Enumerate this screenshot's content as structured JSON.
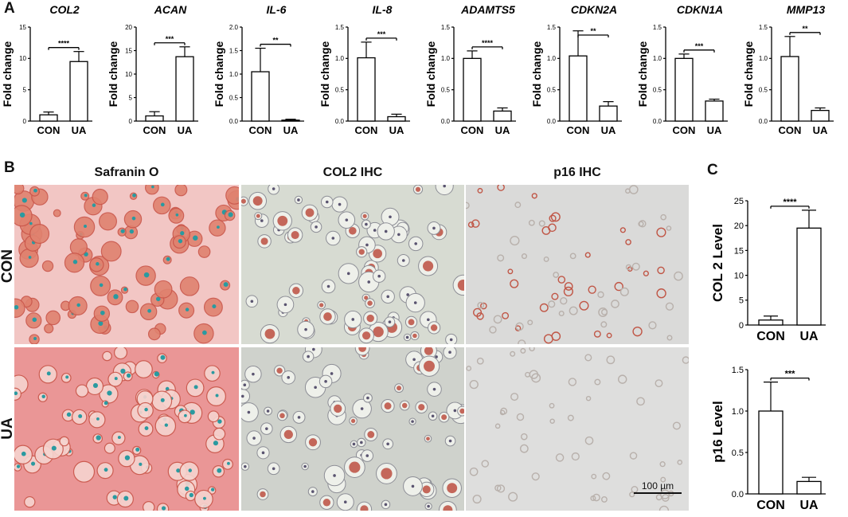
{
  "panels": {
    "a": "A",
    "b": "B",
    "c": "C"
  },
  "panel_b": {
    "columns": [
      "Safranin O",
      "COL2 IHC",
      "p16 IHC"
    ],
    "rows": [
      "CON",
      "UA"
    ],
    "scale_bar_label": "100 µm",
    "colors": {
      "background_con_safranin": "#f2c6c4",
      "background_ua_safranin": "#ea8f90",
      "background_ihc": "#d3d6d0",
      "background_p16": "#dcdcdb",
      "stain_red": "#b53a2a",
      "stain_teal": "#2a9aa0"
    }
  },
  "chart_data": [
    {
      "type": "bar",
      "title": "COL2",
      "ylabel": "Fold change",
      "categories": [
        "CON",
        "UA"
      ],
      "values": [
        1.0,
        9.5
      ],
      "errors": [
        0.45,
        1.6
      ],
      "ylim": [
        0,
        15
      ],
      "yticks": [
        "0",
        "5",
        "10",
        "15"
      ],
      "significance": "****"
    },
    {
      "type": "bar",
      "title": "ACAN",
      "ylabel": "Fold change",
      "categories": [
        "CON",
        "UA"
      ],
      "values": [
        1.1,
        13.7
      ],
      "errors": [
        0.9,
        2.1
      ],
      "ylim": [
        0,
        20
      ],
      "yticks": [
        "0",
        "5",
        "10",
        "15",
        "20"
      ],
      "significance": "***"
    },
    {
      "type": "bar",
      "title": "IL-6",
      "ylabel": "Fold change",
      "categories": [
        "CON",
        "UA"
      ],
      "values": [
        1.05,
        0.02
      ],
      "errors": [
        0.5,
        0.02
      ],
      "ylim": [
        0,
        2
      ],
      "yticks": [
        "0.0",
        "0.5",
        "1.0",
        "1.5",
        "2.0"
      ],
      "significance": "**"
    },
    {
      "type": "bar",
      "title": "IL-8",
      "ylabel": "Fold change",
      "categories": [
        "CON",
        "UA"
      ],
      "values": [
        1.01,
        0.07
      ],
      "errors": [
        0.25,
        0.04
      ],
      "ylim": [
        0,
        1.5
      ],
      "yticks": [
        "0.0",
        "0.5",
        "1.0",
        "1.5"
      ],
      "significance": "***"
    },
    {
      "type": "bar",
      "title": "ADAMTS5",
      "ylabel": "Fold change",
      "categories": [
        "CON",
        "UA"
      ],
      "values": [
        1.0,
        0.16
      ],
      "errors": [
        0.12,
        0.05
      ],
      "ylim": [
        0,
        1.5
      ],
      "yticks": [
        "0.0",
        "0.5",
        "1.0",
        "1.5"
      ],
      "significance": "****"
    },
    {
      "type": "bar",
      "title": "CDKN2A",
      "ylabel": "Fold change",
      "categories": [
        "CON",
        "UA"
      ],
      "values": [
        1.04,
        0.24
      ],
      "errors": [
        0.4,
        0.07
      ],
      "ylim": [
        0,
        1.5
      ],
      "yticks": [
        "0.0",
        "0.5",
        "1.0",
        "1.5"
      ],
      "significance": "**"
    },
    {
      "type": "bar",
      "title": "CDKN1A",
      "ylabel": "Fold change",
      "categories": [
        "CON",
        "UA"
      ],
      "values": [
        1.0,
        0.32
      ],
      "errors": [
        0.07,
        0.03
      ],
      "ylim": [
        0,
        1.5
      ],
      "yticks": [
        "0.0",
        "0.5",
        "1.0",
        "1.5"
      ],
      "significance": "***"
    },
    {
      "type": "bar",
      "title": "MMP13",
      "ylabel": "Fold change",
      "categories": [
        "CON",
        "UA"
      ],
      "values": [
        1.03,
        0.17
      ],
      "errors": [
        0.32,
        0.04
      ],
      "ylim": [
        0,
        1.5
      ],
      "yticks": [
        "0.0",
        "0.5",
        "1.0",
        "1.5"
      ],
      "significance": "**"
    },
    {
      "type": "bar",
      "title": "",
      "ylabel": "COL 2 Level",
      "categories": [
        "CON",
        "UA"
      ],
      "values": [
        1.0,
        19.5
      ],
      "errors": [
        0.8,
        3.6
      ],
      "ylim": [
        0,
        25
      ],
      "yticks": [
        "0",
        "5",
        "10",
        "15",
        "20",
        "25"
      ],
      "significance": "****"
    },
    {
      "type": "bar",
      "title": "",
      "ylabel": "p16 Level",
      "categories": [
        "CON",
        "UA"
      ],
      "values": [
        1.0,
        0.15
      ],
      "errors": [
        0.35,
        0.05
      ],
      "ylim": [
        0,
        1.5
      ],
      "yticks": [
        "0.0",
        "0.5",
        "1.0",
        "1.5"
      ],
      "significance": "***"
    }
  ]
}
